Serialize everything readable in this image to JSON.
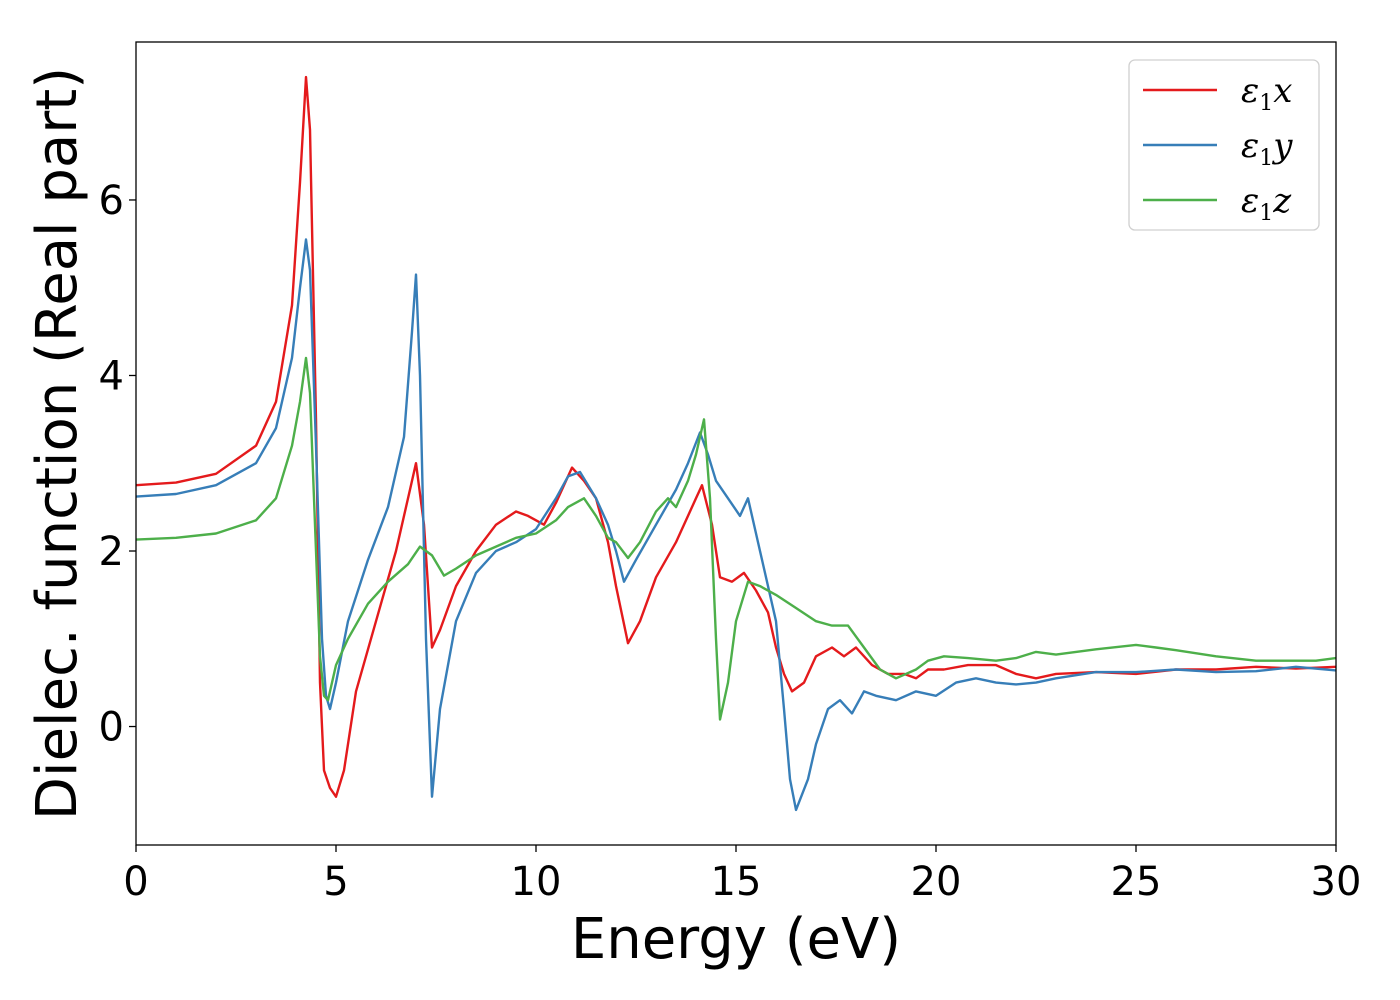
{
  "chart_data": {
    "type": "line",
    "xlabel": "Energy (eV)",
    "ylabel": "Dielec. function (Real part)",
    "xlim": [
      0,
      30
    ],
    "ylim": [
      -1.35,
      7.8
    ],
    "xticks": [
      0,
      5,
      10,
      15,
      20,
      25,
      30
    ],
    "xtick_labels": [
      "0",
      "5",
      "10",
      "15",
      "20",
      "25",
      "30"
    ],
    "yticks": [
      0,
      2,
      4,
      6
    ],
    "ytick_labels": [
      "0",
      "2",
      "4",
      "6"
    ],
    "grid": false,
    "legend_position": "top-right",
    "series": [
      {
        "name": "ε1x",
        "name_base": "ε",
        "name_sub": "1",
        "name_suffix": "x",
        "color": "#e41a1c",
        "points": [
          [
            0,
            2.75
          ],
          [
            1,
            2.78
          ],
          [
            2,
            2.88
          ],
          [
            3,
            3.2
          ],
          [
            3.5,
            3.7
          ],
          [
            3.9,
            4.8
          ],
          [
            4.1,
            6.2
          ],
          [
            4.25,
            7.4
          ],
          [
            4.35,
            6.8
          ],
          [
            4.5,
            3.5
          ],
          [
            4.6,
            0.5
          ],
          [
            4.7,
            -0.5
          ],
          [
            4.85,
            -0.7
          ],
          [
            5.0,
            -0.8
          ],
          [
            5.2,
            -0.5
          ],
          [
            5.5,
            0.4
          ],
          [
            6.0,
            1.2
          ],
          [
            6.5,
            2.0
          ],
          [
            6.85,
            2.7
          ],
          [
            7.0,
            3.0
          ],
          [
            7.2,
            2.3
          ],
          [
            7.4,
            0.9
          ],
          [
            7.6,
            1.1
          ],
          [
            8.0,
            1.6
          ],
          [
            8.5,
            2.0
          ],
          [
            9.0,
            2.3
          ],
          [
            9.5,
            2.45
          ],
          [
            9.8,
            2.4
          ],
          [
            10.2,
            2.3
          ],
          [
            10.5,
            2.55
          ],
          [
            10.9,
            2.95
          ],
          [
            11.2,
            2.8
          ],
          [
            11.5,
            2.6
          ],
          [
            11.8,
            2.1
          ],
          [
            12.0,
            1.6
          ],
          [
            12.3,
            0.95
          ],
          [
            12.6,
            1.2
          ],
          [
            13.0,
            1.7
          ],
          [
            13.5,
            2.1
          ],
          [
            14.0,
            2.6
          ],
          [
            14.15,
            2.75
          ],
          [
            14.4,
            2.3
          ],
          [
            14.6,
            1.7
          ],
          [
            14.9,
            1.65
          ],
          [
            15.2,
            1.75
          ],
          [
            15.5,
            1.55
          ],
          [
            15.8,
            1.3
          ],
          [
            16.0,
            0.9
          ],
          [
            16.2,
            0.6
          ],
          [
            16.4,
            0.4
          ],
          [
            16.7,
            0.5
          ],
          [
            17.0,
            0.8
          ],
          [
            17.4,
            0.9
          ],
          [
            17.7,
            0.8
          ],
          [
            18.0,
            0.9
          ],
          [
            18.4,
            0.7
          ],
          [
            18.8,
            0.6
          ],
          [
            19.2,
            0.6
          ],
          [
            19.5,
            0.55
          ],
          [
            19.8,
            0.65
          ],
          [
            20.2,
            0.65
          ],
          [
            20.8,
            0.7
          ],
          [
            21.5,
            0.7
          ],
          [
            22.0,
            0.6
          ],
          [
            22.5,
            0.55
          ],
          [
            23.0,
            0.6
          ],
          [
            24.0,
            0.62
          ],
          [
            25.0,
            0.6
          ],
          [
            26.0,
            0.65
          ],
          [
            27.0,
            0.65
          ],
          [
            28.0,
            0.68
          ],
          [
            29.0,
            0.66
          ],
          [
            30.0,
            0.68
          ]
        ]
      },
      {
        "name": "ε1y",
        "name_base": "ε",
        "name_sub": "1",
        "name_suffix": "y",
        "color": "#377eb8",
        "points": [
          [
            0,
            2.62
          ],
          [
            1,
            2.65
          ],
          [
            2,
            2.75
          ],
          [
            3,
            3.0
          ],
          [
            3.5,
            3.4
          ],
          [
            3.9,
            4.2
          ],
          [
            4.1,
            5.0
          ],
          [
            4.25,
            5.55
          ],
          [
            4.35,
            5.2
          ],
          [
            4.5,
            3.2
          ],
          [
            4.65,
            1.0
          ],
          [
            4.75,
            0.35
          ],
          [
            4.85,
            0.2
          ],
          [
            5.0,
            0.5
          ],
          [
            5.3,
            1.2
          ],
          [
            5.8,
            1.9
          ],
          [
            6.3,
            2.5
          ],
          [
            6.7,
            3.3
          ],
          [
            6.9,
            4.5
          ],
          [
            7.0,
            5.15
          ],
          [
            7.1,
            4.0
          ],
          [
            7.25,
            1.0
          ],
          [
            7.4,
            -0.8
          ],
          [
            7.6,
            0.2
          ],
          [
            8.0,
            1.2
          ],
          [
            8.5,
            1.75
          ],
          [
            9.0,
            2.0
          ],
          [
            9.5,
            2.1
          ],
          [
            10.0,
            2.25
          ],
          [
            10.5,
            2.6
          ],
          [
            10.8,
            2.85
          ],
          [
            11.1,
            2.9
          ],
          [
            11.5,
            2.6
          ],
          [
            11.8,
            2.3
          ],
          [
            12.0,
            2.0
          ],
          [
            12.2,
            1.65
          ],
          [
            12.5,
            1.9
          ],
          [
            13.0,
            2.3
          ],
          [
            13.5,
            2.7
          ],
          [
            13.8,
            3.0
          ],
          [
            14.1,
            3.35
          ],
          [
            14.3,
            3.1
          ],
          [
            14.5,
            2.8
          ],
          [
            14.8,
            2.6
          ],
          [
            15.1,
            2.4
          ],
          [
            15.3,
            2.6
          ],
          [
            15.6,
            2.0
          ],
          [
            16.0,
            1.2
          ],
          [
            16.2,
            0.2
          ],
          [
            16.35,
            -0.6
          ],
          [
            16.5,
            -0.95
          ],
          [
            16.8,
            -0.6
          ],
          [
            17.0,
            -0.2
          ],
          [
            17.3,
            0.2
          ],
          [
            17.6,
            0.3
          ],
          [
            17.9,
            0.15
          ],
          [
            18.2,
            0.4
          ],
          [
            18.5,
            0.35
          ],
          [
            19.0,
            0.3
          ],
          [
            19.5,
            0.4
          ],
          [
            20.0,
            0.35
          ],
          [
            20.5,
            0.5
          ],
          [
            21.0,
            0.55
          ],
          [
            21.5,
            0.5
          ],
          [
            22.0,
            0.48
          ],
          [
            22.5,
            0.5
          ],
          [
            23.0,
            0.55
          ],
          [
            24.0,
            0.62
          ],
          [
            25.0,
            0.62
          ],
          [
            26.0,
            0.65
          ],
          [
            27.0,
            0.62
          ],
          [
            28.0,
            0.63
          ],
          [
            29.0,
            0.68
          ],
          [
            30.0,
            0.64
          ]
        ]
      },
      {
        "name": "ε1z",
        "name_base": "ε",
        "name_sub": "1",
        "name_suffix": "z",
        "color": "#4daf4a",
        "points": [
          [
            0,
            2.13
          ],
          [
            1,
            2.15
          ],
          [
            2,
            2.2
          ],
          [
            3,
            2.35
          ],
          [
            3.5,
            2.6
          ],
          [
            3.9,
            3.2
          ],
          [
            4.1,
            3.7
          ],
          [
            4.25,
            4.2
          ],
          [
            4.35,
            3.8
          ],
          [
            4.5,
            2.0
          ],
          [
            4.6,
            0.8
          ],
          [
            4.7,
            0.35
          ],
          [
            4.8,
            0.3
          ],
          [
            5.0,
            0.7
          ],
          [
            5.3,
            1.0
          ],
          [
            5.8,
            1.4
          ],
          [
            6.3,
            1.65
          ],
          [
            6.8,
            1.85
          ],
          [
            7.1,
            2.05
          ],
          [
            7.4,
            1.95
          ],
          [
            7.7,
            1.72
          ],
          [
            8.0,
            1.8
          ],
          [
            8.5,
            1.95
          ],
          [
            9.0,
            2.05
          ],
          [
            9.5,
            2.15
          ],
          [
            10.0,
            2.2
          ],
          [
            10.5,
            2.35
          ],
          [
            10.8,
            2.5
          ],
          [
            11.2,
            2.6
          ],
          [
            11.5,
            2.4
          ],
          [
            11.8,
            2.15
          ],
          [
            12.0,
            2.1
          ],
          [
            12.3,
            1.92
          ],
          [
            12.6,
            2.1
          ],
          [
            13.0,
            2.45
          ],
          [
            13.3,
            2.6
          ],
          [
            13.5,
            2.5
          ],
          [
            13.8,
            2.8
          ],
          [
            14.0,
            3.1
          ],
          [
            14.2,
            3.5
          ],
          [
            14.35,
            2.6
          ],
          [
            14.5,
            1.0
          ],
          [
            14.6,
            0.08
          ],
          [
            14.8,
            0.5
          ],
          [
            15.0,
            1.2
          ],
          [
            15.3,
            1.65
          ],
          [
            15.6,
            1.6
          ],
          [
            16.0,
            1.5
          ],
          [
            16.5,
            1.35
          ],
          [
            17.0,
            1.2
          ],
          [
            17.4,
            1.15
          ],
          [
            17.8,
            1.15
          ],
          [
            18.2,
            0.9
          ],
          [
            18.6,
            0.65
          ],
          [
            19.0,
            0.55
          ],
          [
            19.5,
            0.65
          ],
          [
            19.8,
            0.75
          ],
          [
            20.2,
            0.8
          ],
          [
            20.8,
            0.78
          ],
          [
            21.5,
            0.75
          ],
          [
            22.0,
            0.78
          ],
          [
            22.5,
            0.85
          ],
          [
            23.0,
            0.82
          ],
          [
            24.0,
            0.88
          ],
          [
            25.0,
            0.93
          ],
          [
            25.5,
            0.9
          ],
          [
            26.0,
            0.87
          ],
          [
            27.0,
            0.8
          ],
          [
            28.0,
            0.75
          ],
          [
            29.0,
            0.75
          ],
          [
            29.5,
            0.75
          ],
          [
            30.0,
            0.78
          ]
        ]
      }
    ]
  }
}
